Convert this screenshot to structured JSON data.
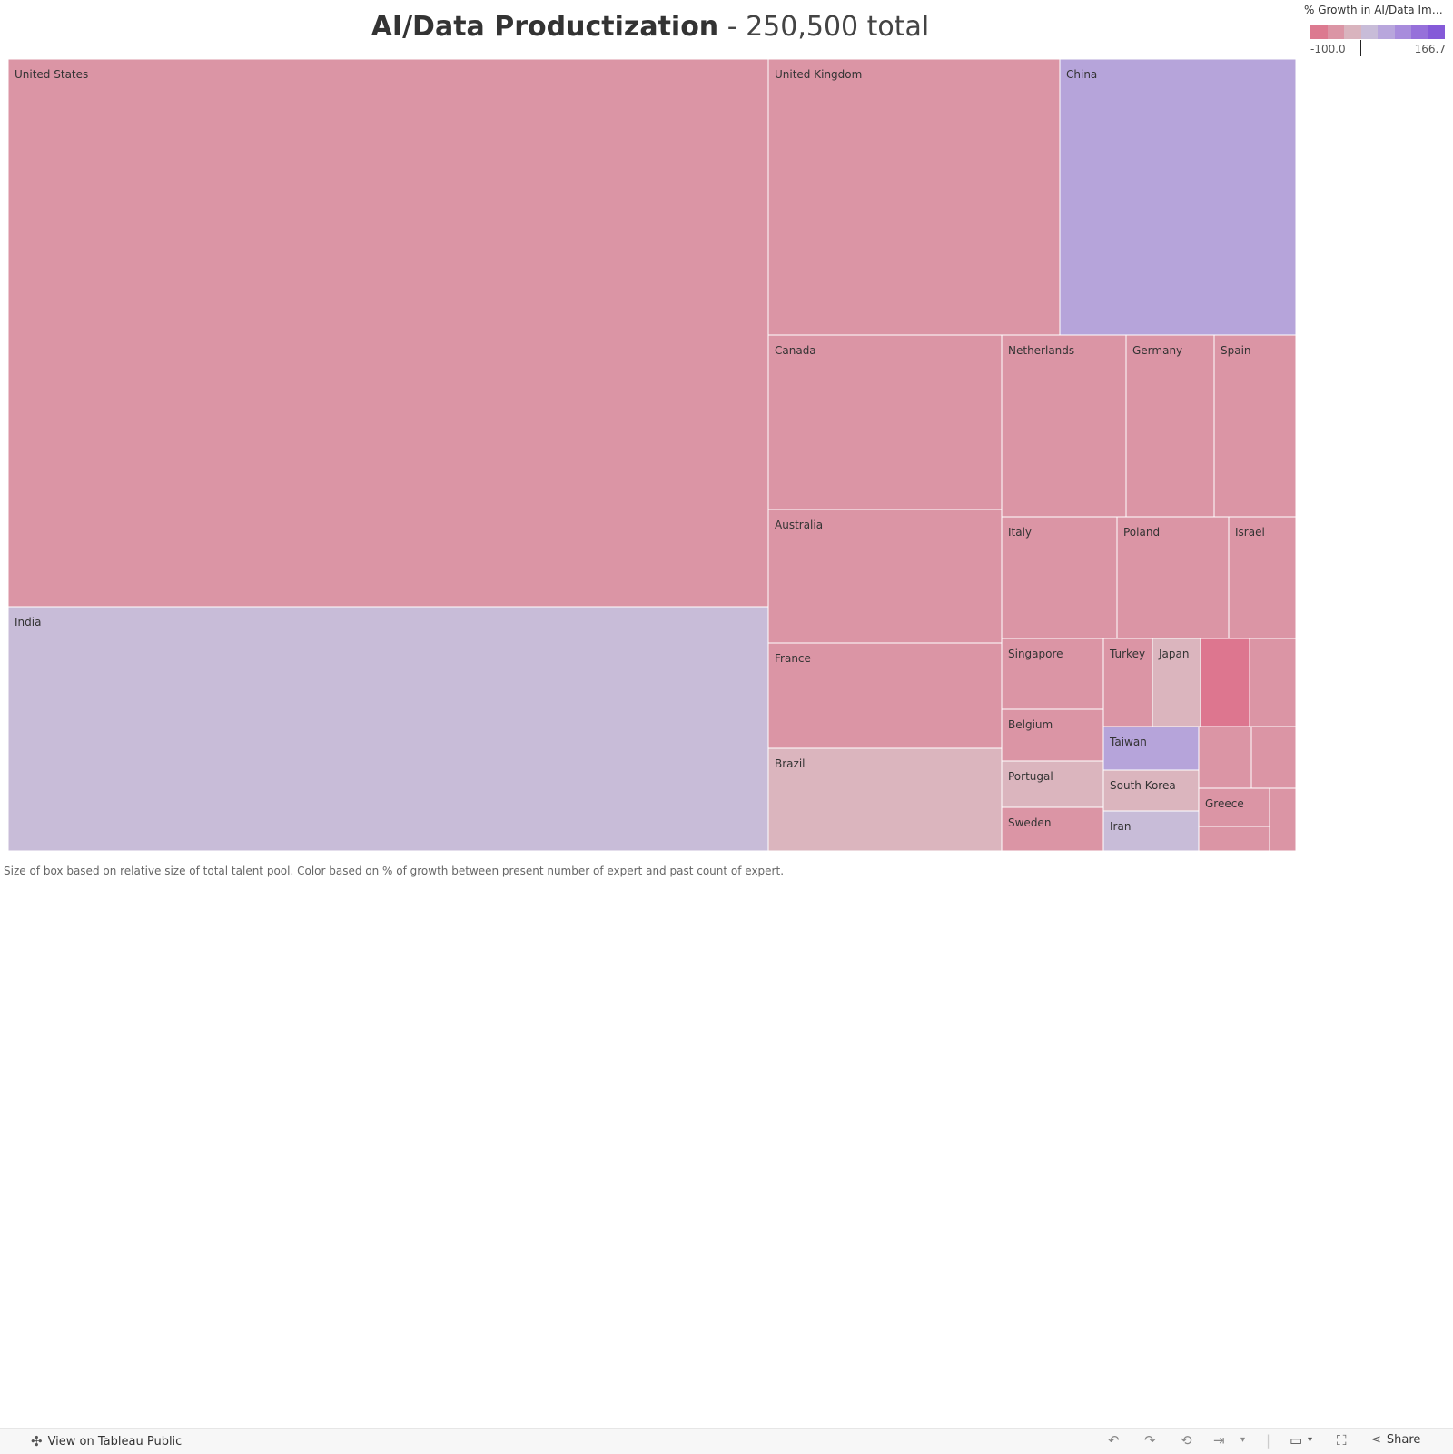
{
  "title": {
    "main": "AI/Data Productization",
    "sub": " - 250,500 total"
  },
  "legend": {
    "title": "% Growth in AI/Data Impl...",
    "min_label": "-100.0",
    "max_label": "166.7",
    "colors": [
      "#dc7a90",
      "#db95a5",
      "#d9b4be",
      "#c8bcd8",
      "#b8a6dc",
      "#a88cdc",
      "#9670da",
      "#855ad8"
    ]
  },
  "footnote": "Size of box based on relative size of total talent pool. Color based on % of growth between present number of expert and past count of expert.",
  "toolbar": {
    "view_label": "View on Tableau Public",
    "share_label": "Share"
  },
  "chart_data": {
    "type": "treemap",
    "title": "AI/Data Productization - 250,500 total",
    "size_measure": "total talent pool",
    "color_measure": "% Growth in AI/Data Impl...",
    "color_range": [
      -100.0,
      166.7
    ],
    "items": [
      {
        "label": "United States",
        "color": "#db95a5"
      },
      {
        "label": "India",
        "color": "#c8bcd8"
      },
      {
        "label": "United Kingdom",
        "color": "#db95a5"
      },
      {
        "label": "China",
        "color": "#b6a4da"
      },
      {
        "label": "Canada",
        "color": "#db95a5"
      },
      {
        "label": "Australia",
        "color": "#db95a5"
      },
      {
        "label": "France",
        "color": "#db95a5"
      },
      {
        "label": "Brazil",
        "color": "#dbb5be"
      },
      {
        "label": "Netherlands",
        "color": "#db95a5"
      },
      {
        "label": "Germany",
        "color": "#db95a5"
      },
      {
        "label": "Spain",
        "color": "#db95a5"
      },
      {
        "label": "Italy",
        "color": "#db95a5"
      },
      {
        "label": "Poland",
        "color": "#db95a5"
      },
      {
        "label": "Israel",
        "color": "#db95a5"
      },
      {
        "label": "Singapore",
        "color": "#db95a5"
      },
      {
        "label": "Belgium",
        "color": "#db95a5"
      },
      {
        "label": "Portugal",
        "color": "#dbb5be"
      },
      {
        "label": "Sweden",
        "color": "#db95a5"
      },
      {
        "label": "Turkey",
        "color": "#db95a5"
      },
      {
        "label": "Japan",
        "color": "#dbb5be"
      },
      {
        "label": "",
        "color": "#dd768f"
      },
      {
        "label": "",
        "color": "#db95a5"
      },
      {
        "label": "Taiwan",
        "color": "#b6a4da"
      },
      {
        "label": "South Korea",
        "color": "#dbb5be"
      },
      {
        "label": "Iran",
        "color": "#c8bcd8"
      },
      {
        "label": "",
        "color": "#db95a5"
      },
      {
        "label": "",
        "color": "#db95a5"
      },
      {
        "label": "Greece",
        "color": "#db95a5"
      },
      {
        "label": "",
        "color": "#db95a5"
      },
      {
        "label": "",
        "color": "#db95a5"
      }
    ]
  }
}
